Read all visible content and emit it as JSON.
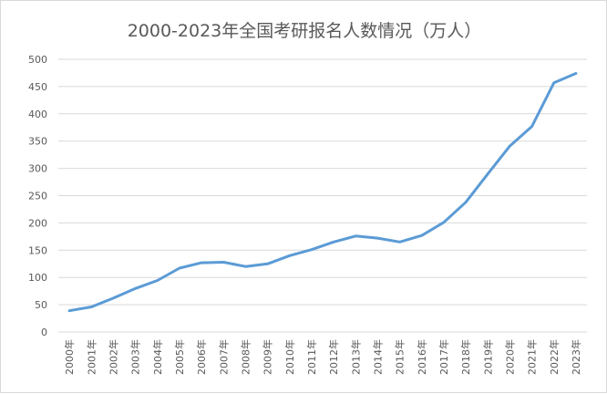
{
  "chart_data": {
    "type": "line",
    "title": "2000-2023年全国考研报名人数情况（万人）",
    "xlabel": "",
    "ylabel": "",
    "ylim": [
      0,
      500
    ],
    "yticks": [
      0,
      50,
      100,
      150,
      200,
      250,
      300,
      350,
      400,
      450,
      500
    ],
    "grid": true,
    "line_color": "#5b9bd5",
    "categories": [
      "2000年",
      "2001年",
      "2002年",
      "2003年",
      "2004年",
      "2005年",
      "2006年",
      "2007年",
      "2008年",
      "2009年",
      "2010年",
      "2011年",
      "2012年",
      "2013年",
      "2014年",
      "2015年",
      "2016年",
      "2017年",
      "2018年",
      "2019年",
      "2020年",
      "2021年",
      "2022年",
      "2023年"
    ],
    "series": [
      {
        "values": [
          39,
          46,
          62,
          79.7,
          94.5,
          117,
          127,
          128,
          120,
          125,
          140,
          151,
          165,
          176,
          172,
          165,
          177,
          201,
          238,
          290,
          341,
          377,
          457,
          474
        ]
      }
    ]
  }
}
